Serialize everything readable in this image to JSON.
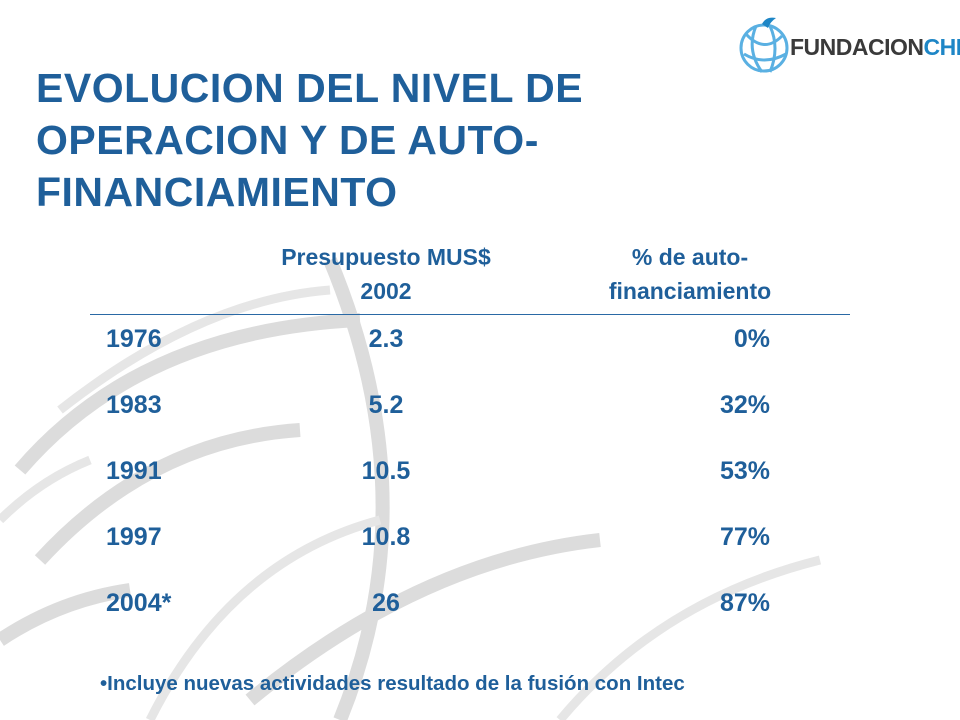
{
  "logo": {
    "part1": "FUNDACION",
    "part2": "CHILE"
  },
  "title": "EVOLUCION DEL NIVEL DE OPERACION Y DE AUTO-FINANCIAMIENTO",
  "table": {
    "headers": [
      "",
      "Presupuesto MUS$ 2002",
      "% de auto-financiamiento"
    ],
    "rows": [
      [
        "1976",
        "2.3",
        "0%"
      ],
      [
        "1983",
        "5.2",
        "32%"
      ],
      [
        "1991",
        "10.5",
        "53%"
      ],
      [
        "1997",
        "10.8",
        "77%"
      ],
      [
        "2004*",
        "26",
        "87%"
      ]
    ]
  },
  "footnote": "•Incluye nuevas actividades resultado de la fusión con Intec",
  "colors": {
    "primary": "#1f5f9a",
    "logo_blue": "#1e86c6",
    "logo_gray": "#3a3a3a",
    "background": "#ffffff"
  }
}
